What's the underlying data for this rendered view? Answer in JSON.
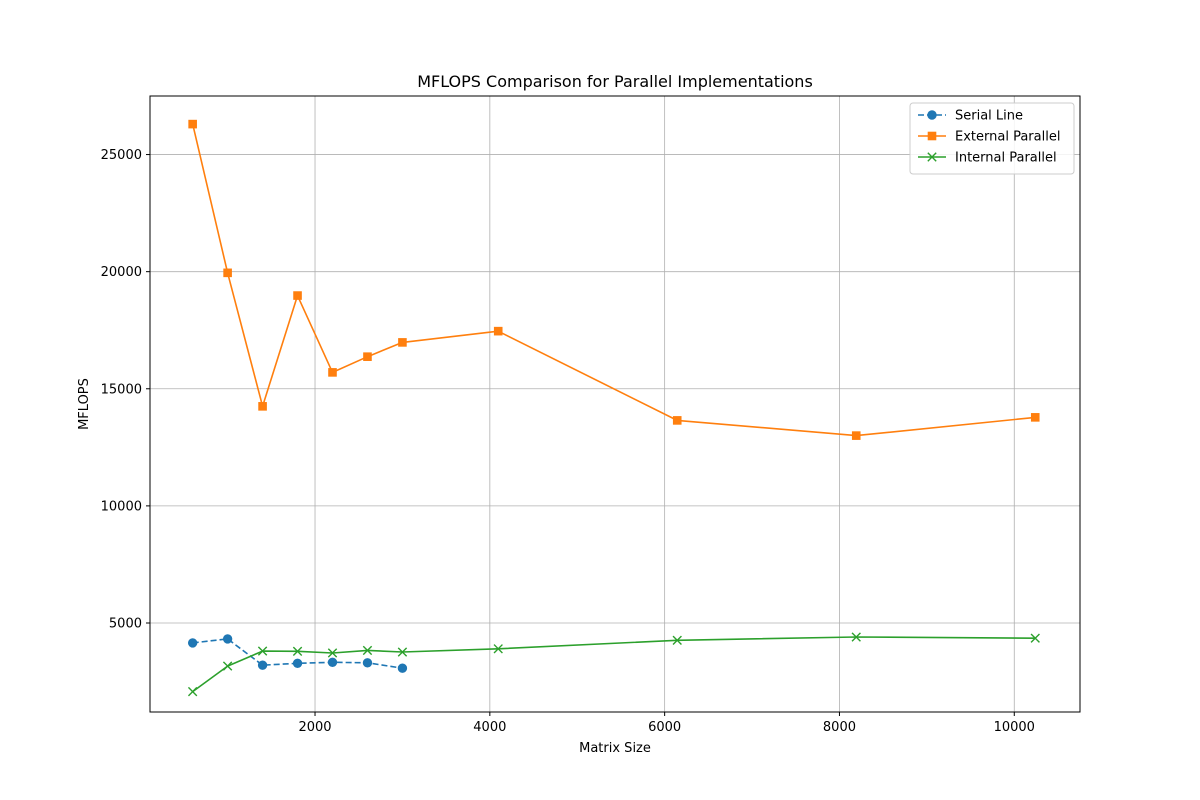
{
  "chart_data": {
    "type": "line",
    "title": "MFLOPS Comparison for Parallel Implementations",
    "xlabel": "Matrix Size",
    "ylabel": "MFLOPS",
    "xlim": [
      112,
      10752
    ],
    "ylim": [
      1200,
      27500
    ],
    "xticks": [
      2000,
      4000,
      6000,
      8000,
      10000
    ],
    "yticks": [
      5000,
      10000,
      15000,
      20000,
      25000
    ],
    "grid": true,
    "legend_position": "top-right",
    "series": [
      {
        "name": "Serial Line",
        "color": "#1f77b4",
        "linestyle": "dashed",
        "marker": "circle",
        "x": [
          600,
          1000,
          1400,
          1800,
          2200,
          2600,
          3000
        ],
        "y": [
          4150,
          4320,
          3200,
          3280,
          3320,
          3300,
          3070
        ]
      },
      {
        "name": "External Parallel",
        "color": "#ff7f0e",
        "linestyle": "solid",
        "marker": "square",
        "x": [
          600,
          1000,
          1400,
          1800,
          2200,
          2600,
          3000,
          4096,
          6144,
          8192,
          10240
        ],
        "y": [
          26300,
          19950,
          14250,
          18980,
          15700,
          16370,
          16980,
          17460,
          13650,
          13000,
          13780
        ]
      },
      {
        "name": "Internal Parallel",
        "color": "#2ca02c",
        "linestyle": "solid",
        "marker": "x",
        "x": [
          600,
          1000,
          1400,
          1800,
          2200,
          2600,
          3000,
          4096,
          6144,
          8192,
          10240
        ],
        "y": [
          2070,
          3160,
          3800,
          3790,
          3720,
          3830,
          3760,
          3900,
          4260,
          4400,
          4350
        ]
      }
    ]
  }
}
